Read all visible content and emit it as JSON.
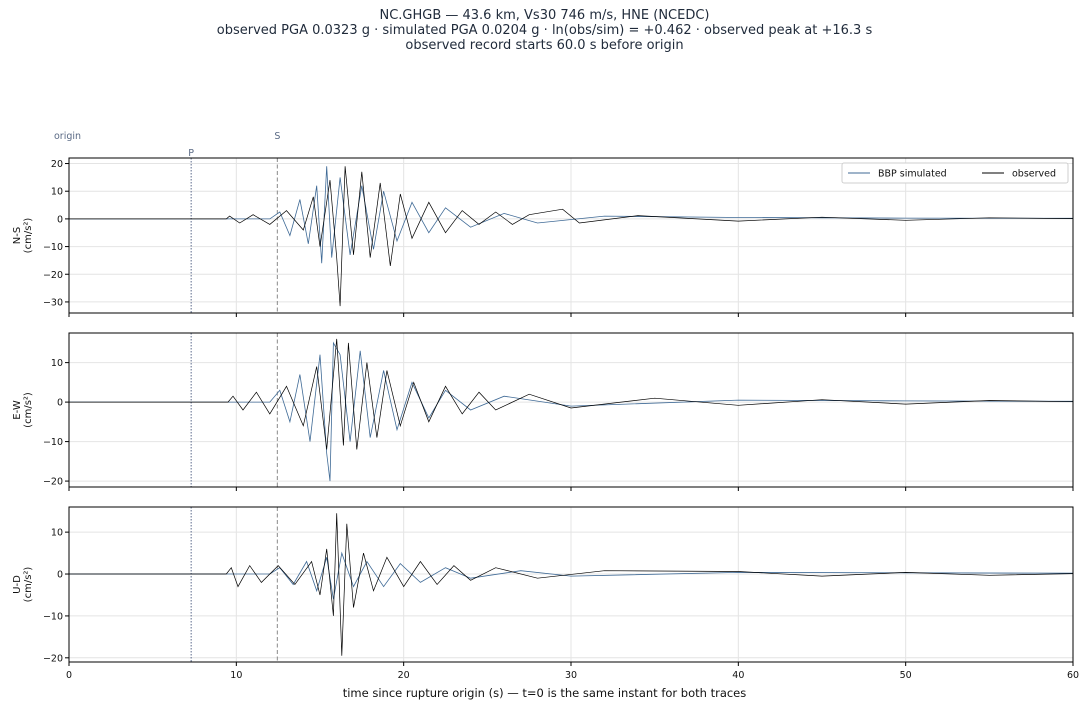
{
  "title": {
    "line1": "NC.GHGB  —  43.6 km, Vs30 746 m/s, HNE (NCEDC)",
    "line2": "observed PGA 0.0323 g   ·   simulated PGA 0.0204 g   ·   ln(obs/sim) = +0.462   ·   observed peak at +16.3 s",
    "line3": "observed record starts 60.0 s before origin"
  },
  "markers": {
    "origin": "origin",
    "p": "P",
    "s": "S",
    "p_time": 7.3,
    "s_time": 12.45
  },
  "colors": {
    "simulated": "#3f6a96",
    "observed": "#000000",
    "p_line": "#5b6a8c",
    "s_line": "#8a8a8a"
  },
  "chart_data": {
    "type": "line",
    "xlabel": "time since rupture origin (s)   —   t=0 is the same instant for both traces",
    "xlim": [
      0,
      60
    ],
    "xticks": [
      0,
      10,
      20,
      30,
      40,
      50,
      60
    ],
    "grid": true,
    "legend": {
      "position": "top-right",
      "entries": [
        "BBP simulated",
        "observed"
      ]
    },
    "panels": [
      {
        "component": "N-S",
        "ylabel": "N-S\n(cm/s²)",
        "ylim": [
          -34,
          22
        ],
        "yticks": [
          -30,
          -20,
          -10,
          0,
          10,
          20
        ],
        "series": [
          {
            "name": "BBP simulated",
            "points": [
              [
                0,
                0
              ],
              [
                12,
                0
              ],
              [
                12.6,
                2.5
              ],
              [
                13.2,
                -6
              ],
              [
                13.8,
                7
              ],
              [
                14.3,
                -9
              ],
              [
                14.8,
                12
              ],
              [
                15.1,
                -16
              ],
              [
                15.4,
                19
              ],
              [
                15.7,
                -14
              ],
              [
                16.2,
                15
              ],
              [
                16.8,
                -13
              ],
              [
                17.5,
                12
              ],
              [
                18.2,
                -11
              ],
              [
                18.8,
                10
              ],
              [
                19.6,
                -8
              ],
              [
                20.5,
                6
              ],
              [
                21.5,
                -5
              ],
              [
                22.5,
                4
              ],
              [
                24,
                -3
              ],
              [
                26,
                2
              ],
              [
                28,
                -1.5
              ],
              [
                32,
                1
              ],
              [
                40,
                0.5
              ],
              [
                50,
                0.3
              ],
              [
                60,
                0.2
              ]
            ]
          },
          {
            "name": "observed",
            "points": [
              [
                0,
                0
              ],
              [
                9.4,
                0
              ],
              [
                9.6,
                1
              ],
              [
                10.2,
                -1.5
              ],
              [
                11,
                1.5
              ],
              [
                12,
                -2
              ],
              [
                13,
                3
              ],
              [
                14,
                -4
              ],
              [
                14.6,
                8
              ],
              [
                15,
                -10
              ],
              [
                15.6,
                14
              ],
              [
                16.0,
                -14
              ],
              [
                16.2,
                -31.5
              ],
              [
                16.5,
                19
              ],
              [
                17,
                -13
              ],
              [
                17.5,
                17
              ],
              [
                18,
                -14
              ],
              [
                18.6,
                13
              ],
              [
                19.2,
                -17
              ],
              [
                19.8,
                9
              ],
              [
                20.5,
                -7
              ],
              [
                21.5,
                6
              ],
              [
                22.5,
                -5
              ],
              [
                23.5,
                3
              ],
              [
                24.5,
                -2
              ],
              [
                25.5,
                2.5
              ],
              [
                26.5,
                -2
              ],
              [
                27.5,
                1.5
              ],
              [
                29.5,
                3.5
              ],
              [
                30.5,
                -1.5
              ],
              [
                34,
                1.2
              ],
              [
                40,
                -0.8
              ],
              [
                45,
                0.6
              ],
              [
                50,
                -0.5
              ],
              [
                55,
                0.4
              ],
              [
                60,
                0.1
              ]
            ]
          }
        ]
      },
      {
        "component": "E-W",
        "ylabel": "E-W\n(cm/s²)",
        "ylim": [
          -21.5,
          17.5
        ],
        "yticks": [
          -20,
          -10,
          0,
          10
        ],
        "series": [
          {
            "name": "BBP simulated",
            "points": [
              [
                0,
                0
              ],
              [
                12,
                0
              ],
              [
                12.6,
                3
              ],
              [
                13.2,
                -5
              ],
              [
                13.8,
                7
              ],
              [
                14.4,
                -10
              ],
              [
                15,
                12
              ],
              [
                15.4,
                -13
              ],
              [
                15.8,
                15
              ],
              [
                15.6,
                -20
              ],
              [
                16.2,
                12
              ],
              [
                16.8,
                -10
              ],
              [
                17.4,
                13
              ],
              [
                18,
                -9
              ],
              [
                18.8,
                8
              ],
              [
                19.6,
                -7
              ],
              [
                20.5,
                5
              ],
              [
                21.5,
                -4
              ],
              [
                22.5,
                3
              ],
              [
                24,
                -2
              ],
              [
                26,
                1.5
              ],
              [
                30,
                -1
              ],
              [
                40,
                0.5
              ],
              [
                50,
                0.3
              ],
              [
                60,
                0.2
              ]
            ]
          },
          {
            "name": "observed",
            "points": [
              [
                0,
                0
              ],
              [
                9.5,
                0
              ],
              [
                9.8,
                1.5
              ],
              [
                10.4,
                -2
              ],
              [
                11.2,
                2.5
              ],
              [
                12,
                -3
              ],
              [
                13,
                4
              ],
              [
                14,
                -6
              ],
              [
                14.8,
                9
              ],
              [
                15.4,
                -12
              ],
              [
                16,
                16
              ],
              [
                16.4,
                -11
              ],
              [
                16.7,
                15
              ],
              [
                17.2,
                -12
              ],
              [
                17.8,
                10
              ],
              [
                18.4,
                -9
              ],
              [
                19,
                8
              ],
              [
                19.8,
                -6
              ],
              [
                20.6,
                5
              ],
              [
                21.5,
                -5
              ],
              [
                22.5,
                4
              ],
              [
                23.5,
                -3
              ],
              [
                24.5,
                2.5
              ],
              [
                25.5,
                -2
              ],
              [
                27.5,
                2
              ],
              [
                30,
                -1.5
              ],
              [
                35,
                1
              ],
              [
                40,
                -0.8
              ],
              [
                45,
                0.6
              ],
              [
                50,
                -0.5
              ],
              [
                55,
                0.4
              ],
              [
                60,
                0.1
              ]
            ]
          }
        ]
      },
      {
        "component": "U-D",
        "ylabel": "U-D\n(cm/s²)",
        "ylim": [
          -21,
          16
        ],
        "yticks": [
          -20,
          -10,
          0,
          10
        ],
        "series": [
          {
            "name": "BBP simulated",
            "points": [
              [
                0,
                0
              ],
              [
                12,
                0
              ],
              [
                12.6,
                1.5
              ],
              [
                13.4,
                -2.5
              ],
              [
                14.2,
                3
              ],
              [
                14.8,
                -4
              ],
              [
                15.4,
                4
              ],
              [
                15.8,
                -6
              ],
              [
                16.3,
                5
              ],
              [
                17,
                -3
              ],
              [
                17.8,
                3
              ],
              [
                18.8,
                -3
              ],
              [
                19.8,
                2.5
              ],
              [
                21,
                -2
              ],
              [
                22.5,
                1.5
              ],
              [
                24,
                -1
              ],
              [
                27,
                0.8
              ],
              [
                30,
                -0.5
              ],
              [
                40,
                0.4
              ],
              [
                50,
                0.3
              ],
              [
                60,
                0.2
              ]
            ]
          },
          {
            "name": "observed",
            "points": [
              [
                0,
                0
              ],
              [
                9.4,
                0
              ],
              [
                9.7,
                1.5
              ],
              [
                10.1,
                -3
              ],
              [
                10.8,
                2
              ],
              [
                11.5,
                -2
              ],
              [
                12.5,
                2
              ],
              [
                13.5,
                -2.5
              ],
              [
                14.5,
                3
              ],
              [
                15,
                -5
              ],
              [
                15.4,
                6
              ],
              [
                15.8,
                -10
              ],
              [
                16.0,
                14.5
              ],
              [
                16.3,
                -19.5
              ],
              [
                16.6,
                12
              ],
              [
                17,
                -8
              ],
              [
                17.6,
                5
              ],
              [
                18.2,
                -4
              ],
              [
                19,
                4
              ],
              [
                20,
                -3
              ],
              [
                21,
                3
              ],
              [
                22,
                -2.5
              ],
              [
                23,
                2
              ],
              [
                24,
                -1.5
              ],
              [
                25.5,
                1.5
              ],
              [
                28,
                -1
              ],
              [
                32,
                0.8
              ],
              [
                40,
                0.6
              ],
              [
                45,
                -0.5
              ],
              [
                50,
                0.4
              ],
              [
                55,
                -0.3
              ],
              [
                60,
                0.1
              ]
            ]
          }
        ]
      }
    ]
  }
}
